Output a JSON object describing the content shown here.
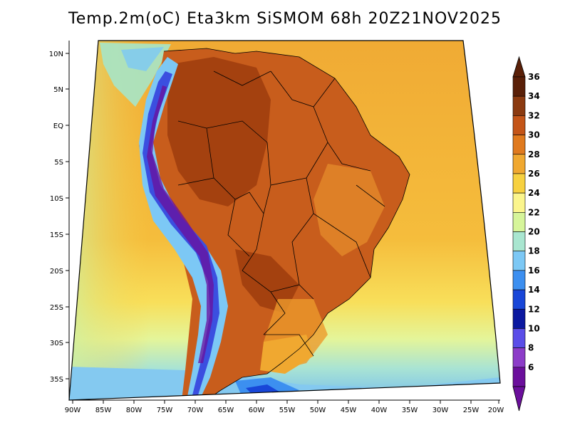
{
  "title": "Temp.2m(oC) Eta3km SiSMOM 68h 20Z21NOV2025",
  "map": {
    "lat_labels": [
      "10N",
      "5N",
      "EQ",
      "5S",
      "10S",
      "15S",
      "20S",
      "25S",
      "30S",
      "35S"
    ],
    "lon_labels": [
      "90W",
      "85W",
      "80W",
      "75W",
      "70W",
      "65W",
      "60W",
      "55W",
      "50W",
      "45W",
      "40W",
      "35W",
      "30W",
      "25W",
      "20W"
    ]
  },
  "colorbar": {
    "labels": [
      "36",
      "34",
      "32",
      "30",
      "28",
      "26",
      "24",
      "22",
      "20",
      "18",
      "16",
      "14",
      "12",
      "10",
      "8",
      "6"
    ],
    "colors": [
      "#5a2008",
      "#8b3a10",
      "#c45518",
      "#e07a1e",
      "#f0a830",
      "#f7d140",
      "#fbf58c",
      "#d6f59a",
      "#a9e6d0",
      "#7cc8f5",
      "#3c8ff0",
      "#1846d8",
      "#0b18a0",
      "#5a4de8",
      "#8c3cc8",
      "#6b0f9c"
    ],
    "top_color": "#5a2008",
    "bottom_color": "#6b0f9c"
  },
  "colors": {
    "ocean_base": "#f2b23c",
    "land_hot": "#c0561a",
    "land_hottest": "#a4410f",
    "andes_cold": "#3b4fe0",
    "south_cool": "#84c9f0",
    "border": "#000000"
  }
}
